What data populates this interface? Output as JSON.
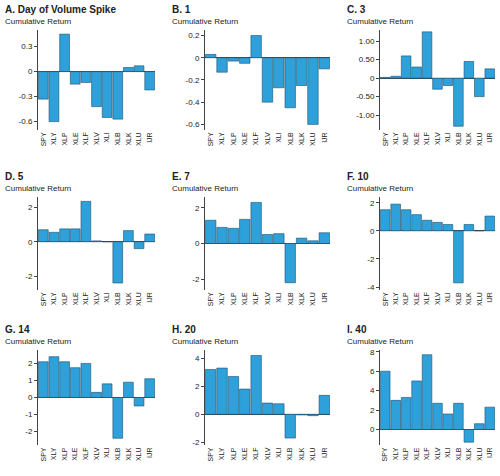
{
  "chart_data": [
    {
      "type": "bar",
      "title": "A. Day of Volume Spike",
      "y_label": "Cumulative Return",
      "categories": [
        "SPY",
        "XLY",
        "XLP",
        "XLE",
        "XLF",
        "XLV",
        "XLI",
        "XLB",
        "XLK",
        "XLU",
        "IJR"
      ],
      "values": [
        -0.33,
        -0.6,
        0.45,
        -0.15,
        -0.13,
        -0.42,
        -0.55,
        -0.57,
        0.05,
        0.07,
        -0.22
      ],
      "color": "#2ea1db",
      "ylim": [
        -0.7,
        0.5
      ],
      "yticks": [
        -0.6,
        -0.3,
        0,
        0.3
      ],
      "grid": false
    },
    {
      "type": "bar",
      "title": "B. 1",
      "y_label": "Cumulative Return",
      "categories": [
        "SPY",
        "XLY",
        "XLP",
        "XLE",
        "XLF",
        "XLV",
        "XLI",
        "XLB",
        "XLK",
        "XLU",
        "IJR"
      ],
      "values": [
        0.03,
        -0.13,
        -0.03,
        -0.05,
        0.2,
        -0.4,
        -0.27,
        -0.45,
        -0.25,
        -0.6,
        -0.1
      ],
      "color": "#2ea1db",
      "ylim": [
        -0.65,
        0.25
      ],
      "yticks": [
        -0.6,
        -0.4,
        -0.2,
        0,
        0.2
      ],
      "grid": false
    },
    {
      "type": "bar",
      "title": "C. 3",
      "y_label": "Cumulative Return",
      "categories": [
        "SPY",
        "XLY",
        "XLP",
        "XLE",
        "XLF",
        "XLV",
        "XLI",
        "XLB",
        "XLK",
        "XLU",
        "IJR"
      ],
      "values": [
        0.02,
        0.05,
        0.6,
        0.3,
        1.25,
        -0.3,
        -0.2,
        -1.3,
        0.45,
        -0.5,
        0.25
      ],
      "color": "#2ea1db",
      "ylim": [
        -1.4,
        1.3
      ],
      "yticks": [
        {
          "value": -1,
          "label": "-1.00"
        },
        {
          "value": -0.5,
          "label": "-0.50"
        },
        0,
        {
          "value": 0.5,
          "label": "0.50"
        },
        {
          "value": 1,
          "label": "1.00"
        }
      ],
      "grid": false
    },
    {
      "type": "bar",
      "title": "D. 5",
      "y_label": "Cumulative Return",
      "categories": [
        "SPY",
        "XLY",
        "XLP",
        "XLE",
        "XLF",
        "XLV",
        "XLI",
        "XLB",
        "XLK",
        "XLU",
        "IJR"
      ],
      "values": [
        0.7,
        0.55,
        0.75,
        0.75,
        2.35,
        0.05,
        0.0,
        -2.4,
        0.65,
        -0.4,
        0.45
      ],
      "color": "#2ea1db",
      "ylim": [
        -2.8,
        2.6
      ],
      "yticks": [
        -2,
        0,
        2
      ],
      "grid": false
    },
    {
      "type": "bar",
      "title": "E. 7",
      "y_label": "Cumulative Return",
      "categories": [
        "SPY",
        "XLY",
        "XLP",
        "XLE",
        "XLF",
        "XLV",
        "XLI",
        "XLB",
        "XLK",
        "XLU",
        "IJR"
      ],
      "values": [
        1.3,
        0.9,
        0.85,
        1.35,
        2.3,
        0.5,
        0.55,
        -2.2,
        0.3,
        0.15,
        0.6
      ],
      "color": "#2ea1db",
      "ylim": [
        -2.6,
        2.6
      ],
      "yticks": [
        -2,
        0,
        2
      ],
      "grid": false
    },
    {
      "type": "bar",
      "title": "F. 10",
      "y_label": "Cumulative Return",
      "categories": [
        "SPY",
        "XLY",
        "XLP",
        "XLE",
        "XLF",
        "XLV",
        "XLI",
        "XLB",
        "XLK",
        "XLU",
        "IJR"
      ],
      "values": [
        1.5,
        1.9,
        1.5,
        1.15,
        0.75,
        0.6,
        0.45,
        -3.7,
        0.45,
        0.0,
        1.05
      ],
      "color": "#2ea1db",
      "ylim": [
        -4.2,
        2.4
      ],
      "yticks": [
        -4,
        -2,
        0,
        2
      ],
      "grid": false
    },
    {
      "type": "bar",
      "title": "G. 14",
      "y_label": "Cumulative Return",
      "categories": [
        "SPY",
        "XLY",
        "XLP",
        "XLE",
        "XLF",
        "XLV",
        "XLI",
        "XLB",
        "XLK",
        "XLU",
        "IJR"
      ],
      "values": [
        2.1,
        2.4,
        2.1,
        1.75,
        2.0,
        0.3,
        0.8,
        -2.4,
        0.9,
        -0.5,
        1.1
      ],
      "color": "#2ea1db",
      "ylim": [
        -2.8,
        2.8
      ],
      "yticks": [
        -2,
        -1,
        0,
        1,
        2
      ],
      "grid": false
    },
    {
      "type": "bar",
      "title": "H. 20",
      "y_label": "Cumulative Return",
      "categories": [
        "SPY",
        "XLY",
        "XLP",
        "XLE",
        "XLF",
        "XLV",
        "XLI",
        "XLB",
        "XLK",
        "XLU",
        "IJR"
      ],
      "values": [
        3.2,
        3.3,
        2.7,
        1.8,
        4.2,
        0.8,
        0.75,
        -1.7,
        -0.05,
        -0.1,
        1.35
      ],
      "color": "#2ea1db",
      "ylim": [
        -2.2,
        4.6
      ],
      "yticks": [
        -2,
        0,
        2,
        4
      ],
      "grid": false
    },
    {
      "type": "bar",
      "title": "I. 40",
      "y_label": "Cumulative Return",
      "categories": [
        "SPY",
        "XLY",
        "XLP",
        "XLE",
        "XLF",
        "XLV",
        "XLI",
        "XLB",
        "XLK",
        "XLU",
        "IJR"
      ],
      "values": [
        6.0,
        3.0,
        3.3,
        5.0,
        7.7,
        2.7,
        1.6,
        2.7,
        -1.3,
        0.6,
        2.3
      ],
      "color": "#2ea1db",
      "ylim": [
        -1.6,
        8.2
      ],
      "yticks": [
        0,
        2,
        4,
        6,
        8
      ],
      "grid": false
    }
  ]
}
